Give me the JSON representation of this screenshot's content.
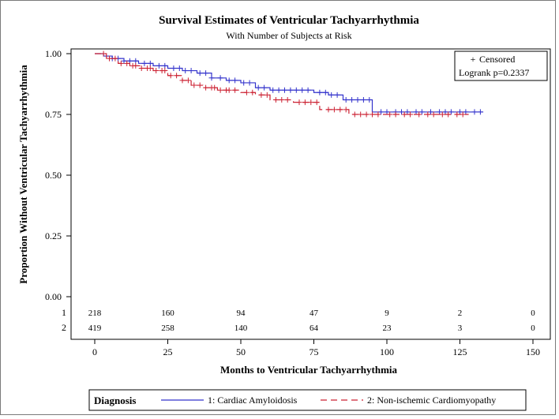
{
  "chart_data": {
    "type": "line",
    "title": "Survival Estimates of Ventricular Tachyarrhythmia",
    "subtitle": "With Number of Subjects at Risk",
    "xlabel": "Months to Ventricular Tachyarrhythmia",
    "ylabel": "Proportion Without Ventricular Tachyarrhythmia",
    "xlim": [
      0,
      150
    ],
    "ylim": [
      0,
      1
    ],
    "x_ticks": [
      "0",
      "25",
      "50",
      "75",
      "100",
      "125",
      "150"
    ],
    "y_ticks": [
      "0.00",
      "0.25",
      "0.50",
      "0.75",
      "1.00"
    ],
    "inset": {
      "censored_label": "Censored",
      "censored_symbol": "+",
      "logrank": "Logrank p=0.2337"
    },
    "legend": {
      "title": "Diagnosis",
      "position": "bottom"
    },
    "series": [
      {
        "name": "1: Cardiac Amyloidosis",
        "color": "#3333cc",
        "dashed": false,
        "steps": [
          [
            0,
            1.0
          ],
          [
            3,
            0.99
          ],
          [
            6,
            0.98
          ],
          [
            10,
            0.97
          ],
          [
            15,
            0.96
          ],
          [
            20,
            0.95
          ],
          [
            25,
            0.94
          ],
          [
            30,
            0.93
          ],
          [
            35,
            0.92
          ],
          [
            40,
            0.9
          ],
          [
            45,
            0.89
          ],
          [
            50,
            0.88
          ],
          [
            55,
            0.86
          ],
          [
            60,
            0.85
          ],
          [
            75,
            0.84
          ],
          [
            80,
            0.83
          ],
          [
            85,
            0.81
          ],
          [
            95,
            0.76
          ],
          [
            133,
            0.76
          ]
        ],
        "censored": [
          6,
          8,
          10,
          12,
          14,
          17,
          19,
          22,
          24,
          27,
          29,
          31,
          33,
          36,
          38,
          40,
          43,
          46,
          48,
          51,
          53,
          56,
          58,
          61,
          63,
          65,
          67,
          69,
          71,
          73,
          77,
          79,
          81,
          83,
          86,
          88,
          90,
          92,
          94,
          98,
          100,
          103,
          105,
          107,
          110,
          112,
          115,
          118,
          120,
          122,
          125,
          127,
          130,
          132
        ]
      },
      {
        "name": "2: Non-ischemic Cardiomyopathy",
        "color": "#cc2233",
        "dashed": true,
        "steps": [
          [
            0,
            1.0
          ],
          [
            4,
            0.98
          ],
          [
            8,
            0.96
          ],
          [
            12,
            0.95
          ],
          [
            16,
            0.94
          ],
          [
            20,
            0.93
          ],
          [
            25,
            0.91
          ],
          [
            30,
            0.89
          ],
          [
            33,
            0.87
          ],
          [
            37,
            0.86
          ],
          [
            42,
            0.85
          ],
          [
            50,
            0.84
          ],
          [
            55,
            0.83
          ],
          [
            60,
            0.81
          ],
          [
            68,
            0.8
          ],
          [
            77,
            0.77
          ],
          [
            87,
            0.75
          ],
          [
            128,
            0.75
          ]
        ],
        "censored": [
          3,
          5,
          7,
          9,
          11,
          13,
          14,
          16,
          18,
          19,
          21,
          23,
          24,
          26,
          28,
          30,
          32,
          34,
          36,
          38,
          40,
          41,
          43,
          45,
          46,
          48,
          52,
          54,
          57,
          59,
          62,
          64,
          66,
          70,
          72,
          74,
          76,
          80,
          82,
          84,
          86,
          89,
          91,
          93,
          95,
          97,
          101,
          103,
          106,
          108,
          111,
          114,
          116,
          119,
          121,
          124,
          126
        ]
      }
    ],
    "at_risk": {
      "times": [
        0,
        25,
        50,
        75,
        100,
        125,
        150
      ],
      "rows": [
        {
          "label": "1",
          "counts": [
            "218",
            "160",
            "94",
            "47",
            "9",
            "2",
            "0"
          ]
        },
        {
          "label": "2",
          "counts": [
            "419",
            "258",
            "140",
            "64",
            "23",
            "3",
            "0"
          ]
        }
      ]
    }
  }
}
